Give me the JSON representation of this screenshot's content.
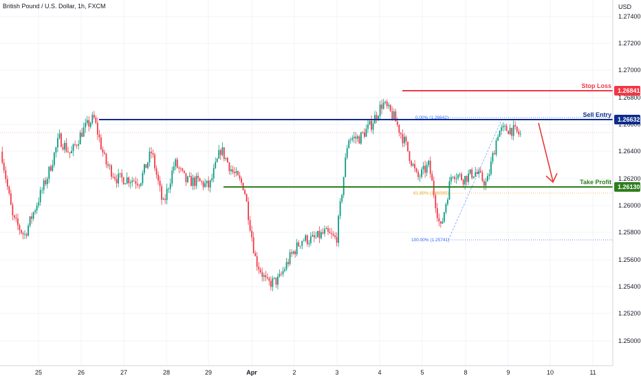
{
  "window": {
    "title": "British Pound / U.S. Dollar, 1h, FXCM"
  },
  "price_axis": {
    "currency": "USD",
    "labels": [
      "1.27400",
      "1.27200",
      "1.27000",
      "1.26800",
      "1.26600",
      "1.26400",
      "1.26200",
      "1.26000",
      "1.25800",
      "1.25600",
      "1.25400",
      "1.25200",
      "1.25000"
    ]
  },
  "time_axis": {
    "labels": [
      "25",
      "26",
      "27",
      "28",
      "29",
      "Apr",
      "2",
      "3",
      "4",
      "5",
      "8",
      "9",
      "10",
      "11"
    ]
  },
  "levels": {
    "stop_loss": {
      "label": "Stop Loss",
      "value": 1.26841,
      "tag": "1.26841",
      "color": "#f23645"
    },
    "sell_entry": {
      "label": "Sell Entry",
      "value": 1.26632,
      "tag": "1.26632",
      "color": "#0d2d8c"
    },
    "take_profit": {
      "label": "Take Profit",
      "value": 1.2613,
      "tag": "1.26130",
      "color": "#2e7d1e"
    }
  },
  "fibonacci": {
    "fib_0": {
      "text": "0.00% (1.26642)",
      "color": "#2962ff"
    },
    "fib_618": {
      "text": "61.80% (1.26085)",
      "color": "#e8a317"
    },
    "fib_100": {
      "text": "100.00% (1.25741)",
      "color": "#2962ff"
    }
  },
  "colors": {
    "up": "#089981",
    "down": "#f23645",
    "arrow": "#e53935"
  },
  "chart_data": {
    "type": "candlestick",
    "title": "British Pound / U.S. Dollar, 1h, FXCM",
    "x_categories": [
      "25",
      "26",
      "27",
      "28",
      "29",
      "Apr",
      "2",
      "3",
      "4",
      "5",
      "8",
      "9",
      "10",
      "11"
    ],
    "ylim": [
      1.2484,
      1.2757
    ],
    "y_unit": "USD",
    "current_price_line": 1.2653,
    "path": [
      {
        "day": "25",
        "price": 1.264
      },
      {
        "day": "25",
        "price": 1.259
      },
      {
        "day": "25",
        "price": 1.2578
      },
      {
        "day": "25",
        "price": 1.26
      },
      {
        "day": "25",
        "price": 1.2622
      },
      {
        "day": "25",
        "price": 1.265
      },
      {
        "day": "26",
        "price": 1.2638
      },
      {
        "day": "26",
        "price": 1.2655
      },
      {
        "day": "26",
        "price": 1.2665
      },
      {
        "day": "27",
        "price": 1.2632
      },
      {
        "day": "27",
        "price": 1.262
      },
      {
        "day": "27",
        "price": 1.262
      },
      {
        "day": "27",
        "price": 1.2618
      },
      {
        "day": "28",
        "price": 1.264
      },
      {
        "day": "28",
        "price": 1.26
      },
      {
        "day": "28",
        "price": 1.2632
      },
      {
        "day": "28",
        "price": 1.2618
      },
      {
        "day": "29",
        "price": 1.2618
      },
      {
        "day": "29",
        "price": 1.2614
      },
      {
        "day": "29",
        "price": 1.2642
      },
      {
        "day": "29",
        "price": 1.2625
      },
      {
        "day": "Apr",
        "price": 1.2614
      },
      {
        "day": "Apr",
        "price": 1.256
      },
      {
        "day": "Apr",
        "price": 1.2542
      },
      {
        "day": "2",
        "price": 1.2545
      },
      {
        "day": "2",
        "price": 1.2562
      },
      {
        "day": "2",
        "price": 1.2575
      },
      {
        "day": "3",
        "price": 1.2575
      },
      {
        "day": "3",
        "price": 1.258
      },
      {
        "day": "3",
        "price": 1.2575
      },
      {
        "day": "4",
        "price": 1.265
      },
      {
        "day": "4",
        "price": 1.265
      },
      {
        "day": "4",
        "price": 1.266
      },
      {
        "day": "4",
        "price": 1.2676
      },
      {
        "day": "5",
        "price": 1.2665
      },
      {
        "day": "5",
        "price": 1.2645
      },
      {
        "day": "5",
        "price": 1.262
      },
      {
        "day": "5",
        "price": 1.263
      },
      {
        "day": "5",
        "price": 1.2582
      },
      {
        "day": "5",
        "price": 1.2625
      },
      {
        "day": "8",
        "price": 1.262
      },
      {
        "day": "8",
        "price": 1.2625
      },
      {
        "day": "8",
        "price": 1.2616
      },
      {
        "day": "9",
        "price": 1.2655
      },
      {
        "day": "9",
        "price": 1.2657
      },
      {
        "day": "9",
        "price": 1.2652
      }
    ]
  }
}
